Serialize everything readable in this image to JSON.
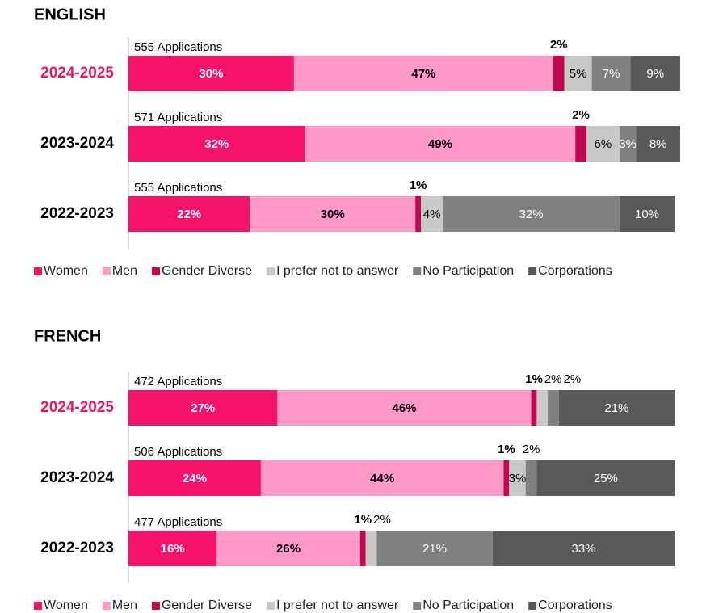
{
  "chart_data": [
    {
      "type": "stacked_barh",
      "title": "ENGLISH",
      "categories": [
        "2024-2025",
        "2023-2024",
        "2022-2023"
      ],
      "annotations": [
        "555 Applications",
        "571 Applications",
        "555 Applications"
      ],
      "xlim": [
        0,
        100
      ],
      "series": [
        {
          "name": "Women",
          "color": "#f5136a",
          "values": [
            30,
            32,
            22
          ],
          "value_labels": [
            "30%",
            "32%",
            "22%"
          ]
        },
        {
          "name": "Men",
          "color": "#ff99c8",
          "values": [
            47,
            49,
            30
          ],
          "value_labels": [
            "47%",
            "49%",
            "30%"
          ]
        },
        {
          "name": "Gender Diverse",
          "color": "#c3074f",
          "values": [
            2,
            2,
            1
          ],
          "value_labels": [
            "2%",
            "2%",
            "1%"
          ]
        },
        {
          "name": "I prefer not to answer",
          "color": "#c8c8c8",
          "values": [
            5,
            6,
            4
          ],
          "value_labels": [
            "5%",
            "6%",
            "4%"
          ]
        },
        {
          "name": "No Participation",
          "color": "#808080",
          "values": [
            7,
            3,
            32
          ],
          "value_labels": [
            "7%",
            "3%",
            "32%"
          ]
        },
        {
          "name": "Corporations",
          "color": "#595959",
          "values": [
            9,
            8,
            10
          ],
          "value_labels": [
            "9%",
            "8%",
            "10%"
          ]
        }
      ]
    },
    {
      "type": "stacked_barh",
      "title": "FRENCH",
      "categories": [
        "2024-2025",
        "2023-2024",
        "2022-2023"
      ],
      "annotations": [
        "472 Applications",
        "506 Applications",
        "477 Applications"
      ],
      "xlim": [
        0,
        100
      ],
      "series": [
        {
          "name": "Women",
          "color": "#f5136a",
          "values": [
            27,
            24,
            16
          ],
          "value_labels": [
            "27%",
            "24%",
            "16%"
          ]
        },
        {
          "name": "Men",
          "color": "#ff99c8",
          "values": [
            46,
            44,
            26
          ],
          "value_labels": [
            "46%",
            "44%",
            "26%"
          ]
        },
        {
          "name": "Gender Diverse",
          "color": "#c3074f",
          "values": [
            1,
            1,
            1
          ],
          "value_labels": [
            "1%",
            "1%",
            "1%"
          ]
        },
        {
          "name": "I prefer not to answer",
          "color": "#c8c8c8",
          "values": [
            2,
            3,
            2
          ],
          "value_labels": [
            "2%",
            "3%",
            "2%"
          ]
        },
        {
          "name": "No Participation",
          "color": "#808080",
          "values": [
            2,
            2,
            21
          ],
          "value_labels": [
            "2%",
            "2%",
            "21%"
          ]
        },
        {
          "name": "Corporations",
          "color": "#595959",
          "values": [
            21,
            25,
            33
          ],
          "value_labels": [
            "21%",
            "25%",
            "33%"
          ]
        }
      ]
    }
  ]
}
